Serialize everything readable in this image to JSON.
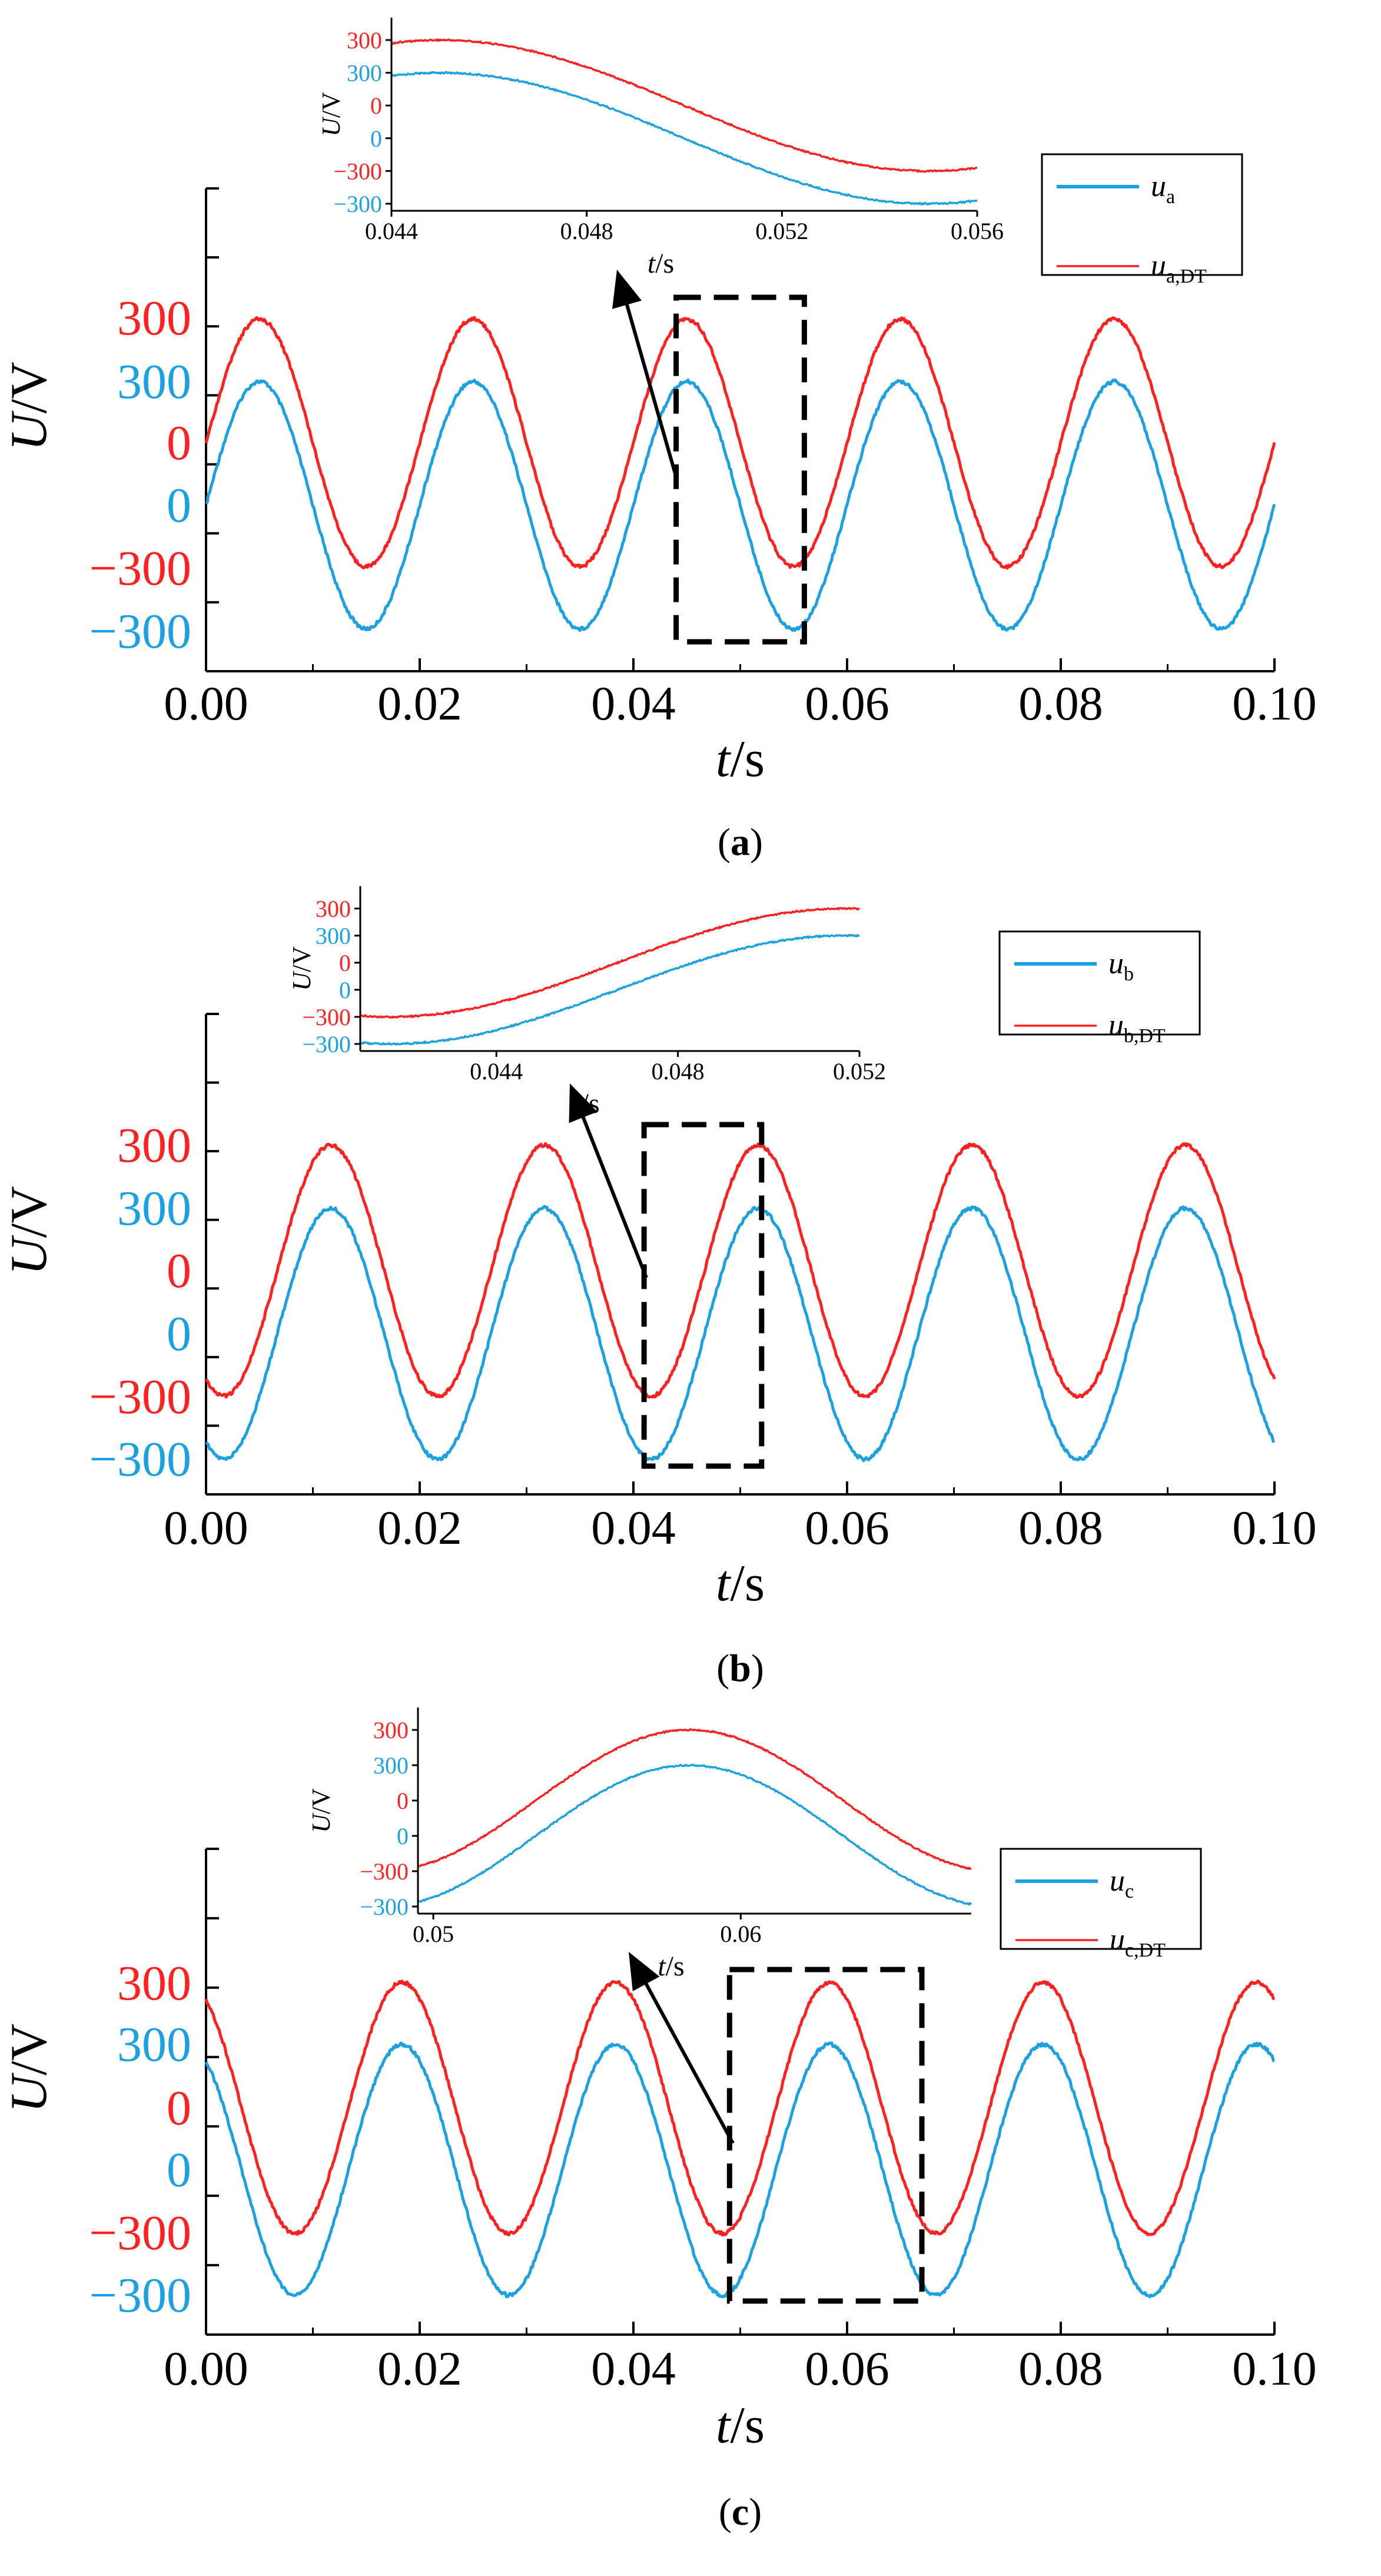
{
  "colors": {
    "blue": "#1ba1e2",
    "red": "#ff2020",
    "axis": "#000000"
  },
  "chart_data": [
    {
      "panel": "a",
      "caption": {
        "open": "(",
        "letter": "a",
        "close": ")"
      },
      "type": "line",
      "xlabel": {
        "var": "t",
        "unit": "/s"
      },
      "ylabel": {
        "var": "U",
        "unit": "/V"
      },
      "xlim": [
        0,
        0.1
      ],
      "x_ticks": [
        "0.00",
        "0.02",
        "0.04",
        "0.06",
        "0.08",
        "0.10"
      ],
      "y_ticks": [
        {
          "label": "300",
          "series": "red"
        },
        {
          "label": "300",
          "series": "blue"
        },
        {
          "label": "0",
          "series": "red"
        },
        {
          "label": "0",
          "series": "blue"
        },
        {
          "label": "−300",
          "series": "red"
        },
        {
          "label": "−300",
          "series": "blue"
        }
      ],
      "frequency_hz": 50,
      "amplitude_v": 300,
      "phase_rad": 0,
      "red_offset": 1,
      "legend": [
        {
          "var": "u",
          "sub": "a",
          "color": "blue"
        },
        {
          "var": "u",
          "sub": "a,DT",
          "color": "red"
        }
      ],
      "zoom_range": [
        0.044,
        0.056
      ],
      "inset": {
        "xlim": [
          0.044,
          0.056
        ],
        "x_ticks": [
          "0.044",
          "0.048",
          "0.052",
          "0.056"
        ],
        "xlabel": {
          "var": "t",
          "unit": "/s"
        },
        "ylabel": {
          "var": "U",
          "unit": "/V"
        }
      }
    },
    {
      "panel": "b",
      "caption": {
        "open": "(",
        "letter": "b",
        "close": ")"
      },
      "type": "line",
      "xlabel": {
        "var": "t",
        "unit": "/s"
      },
      "ylabel": {
        "var": "U",
        "unit": "/V"
      },
      "xlim": [
        0,
        0.1
      ],
      "x_ticks": [
        "0.00",
        "0.02",
        "0.04",
        "0.06",
        "0.08",
        "0.10"
      ],
      "y_ticks": [
        {
          "label": "300",
          "series": "red"
        },
        {
          "label": "300",
          "series": "blue"
        },
        {
          "label": "0",
          "series": "red"
        },
        {
          "label": "0",
          "series": "blue"
        },
        {
          "label": "−300",
          "series": "red"
        },
        {
          "label": "−300",
          "series": "blue"
        }
      ],
      "frequency_hz": 50,
      "amplitude_v": 300,
      "phase_rad": -2.0944,
      "red_offset": 1,
      "legend": [
        {
          "var": "u",
          "sub": "b",
          "color": "blue"
        },
        {
          "var": "u",
          "sub": "b,DT",
          "color": "red"
        }
      ],
      "zoom_range": [
        0.041,
        0.052
      ],
      "inset": {
        "xlim": [
          0.041,
          0.052
        ],
        "x_ticks": [
          "0.044",
          "0.048",
          "0.052"
        ],
        "xlabel": {
          "var": "t",
          "unit": "/s"
        },
        "ylabel": {
          "var": "U",
          "unit": "/V"
        }
      }
    },
    {
      "panel": "c",
      "caption": {
        "open": "(",
        "letter": "c",
        "close": ")"
      },
      "type": "line",
      "xlabel": {
        "var": "t",
        "unit": "/s"
      },
      "ylabel": {
        "var": "U",
        "unit": "/V"
      },
      "xlim": [
        0,
        0.1
      ],
      "x_ticks": [
        "0.00",
        "0.02",
        "0.04",
        "0.06",
        "0.08",
        "0.10"
      ],
      "y_ticks": [
        {
          "label": "300",
          "series": "red"
        },
        {
          "label": "300",
          "series": "blue"
        },
        {
          "label": "0",
          "series": "red"
        },
        {
          "label": "0",
          "series": "blue"
        },
        {
          "label": "−300",
          "series": "red"
        },
        {
          "label": "−300",
          "series": "blue"
        }
      ],
      "frequency_hz": 50,
      "amplitude_v": 300,
      "phase_rad": 2.0944,
      "red_offset": 1,
      "legend": [
        {
          "var": "u",
          "sub": "c",
          "color": "blue"
        },
        {
          "var": "u",
          "sub": "c,DT",
          "color": "red"
        }
      ],
      "zoom_range": [
        0.049,
        0.067
      ],
      "inset": {
        "xlim": [
          0.0495,
          0.0675
        ],
        "x_ticks": [
          "0.05",
          "0.06"
        ],
        "xlabel": {
          "var": "t",
          "unit": "/s"
        },
        "ylabel": {
          "var": "U",
          "unit": "/V"
        }
      }
    }
  ]
}
